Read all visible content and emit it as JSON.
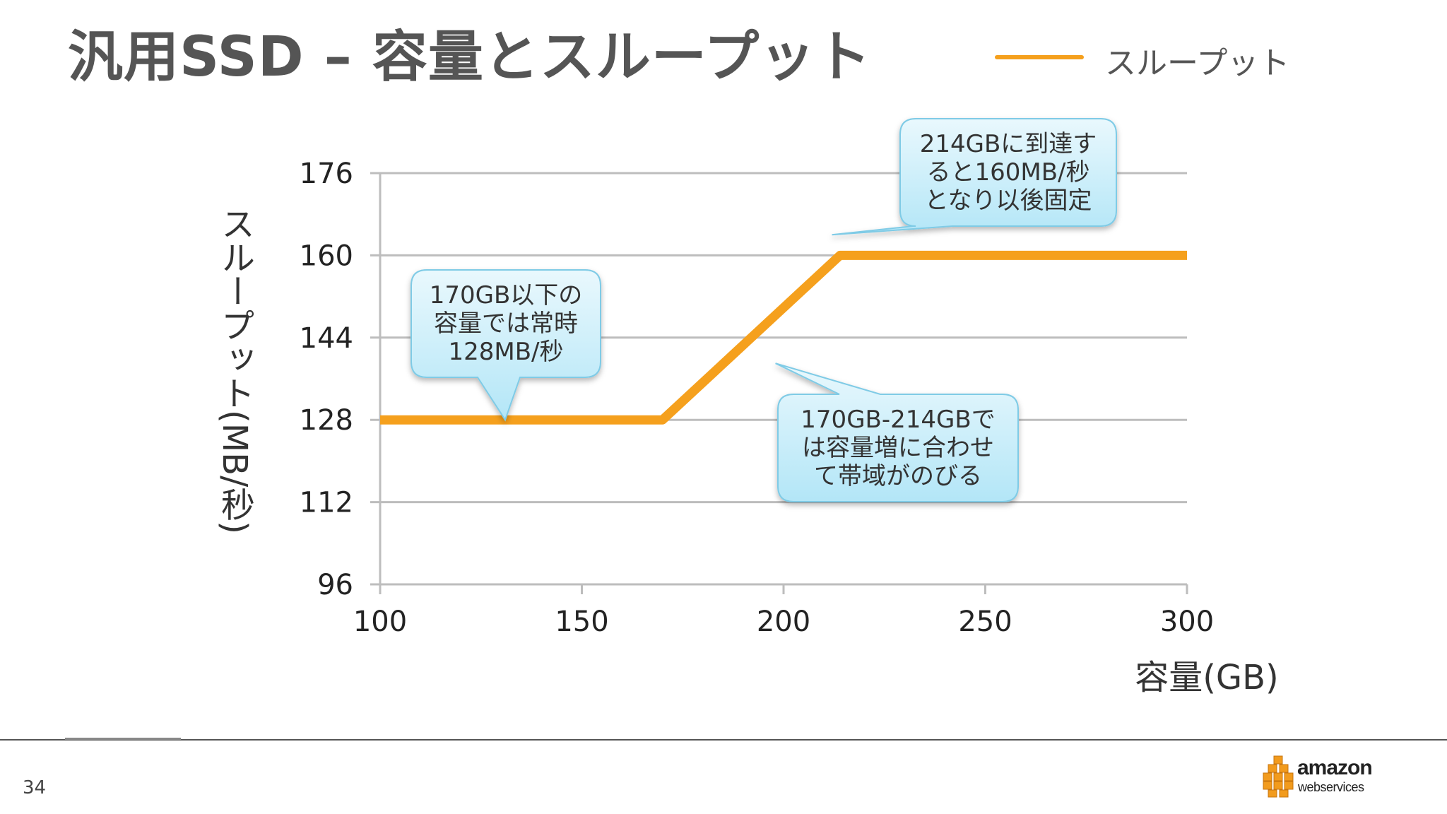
{
  "slide": {
    "title": "汎用SSD – 容量とスループット",
    "page_number": "34"
  },
  "colors": {
    "series": "#f5a01d",
    "gridline": "#bdbdbd",
    "callout_top": "#e9f8fd",
    "callout_bottom": "#b3e6f7",
    "callout_border": "#7fcbe6"
  },
  "chart_data": {
    "type": "line",
    "xlabel": "容量(GB)",
    "ylabel": "スループット(MB/秒)",
    "xlim": [
      100,
      300
    ],
    "ylim": [
      96,
      176
    ],
    "x_ticks": [
      "100",
      "150",
      "200",
      "250",
      "300"
    ],
    "y_ticks": [
      "96",
      "112",
      "128",
      "144",
      "160",
      "176"
    ],
    "grid": true,
    "legend_position": "top-right",
    "series": [
      {
        "name": "スループット",
        "x": [
          100,
          170,
          214,
          300
        ],
        "y": [
          128,
          128,
          160,
          160
        ]
      }
    ],
    "annotations": [
      {
        "text": "170GB以下の\n容量では常時\n128MB/秒",
        "point": [
          131,
          128
        ]
      },
      {
        "text": "214GBに到達す\nると160MB/秒\nとなり以後固定",
        "point": [
          212,
          164
        ]
      },
      {
        "text": "170GB-214GBで\nは容量増に合わせ\nて帯域がのびる",
        "point": [
          198,
          139
        ]
      }
    ]
  },
  "logo": {
    "brand": "amazon",
    "sub": "webservices",
    "icon": "aws-cubes-icon"
  }
}
